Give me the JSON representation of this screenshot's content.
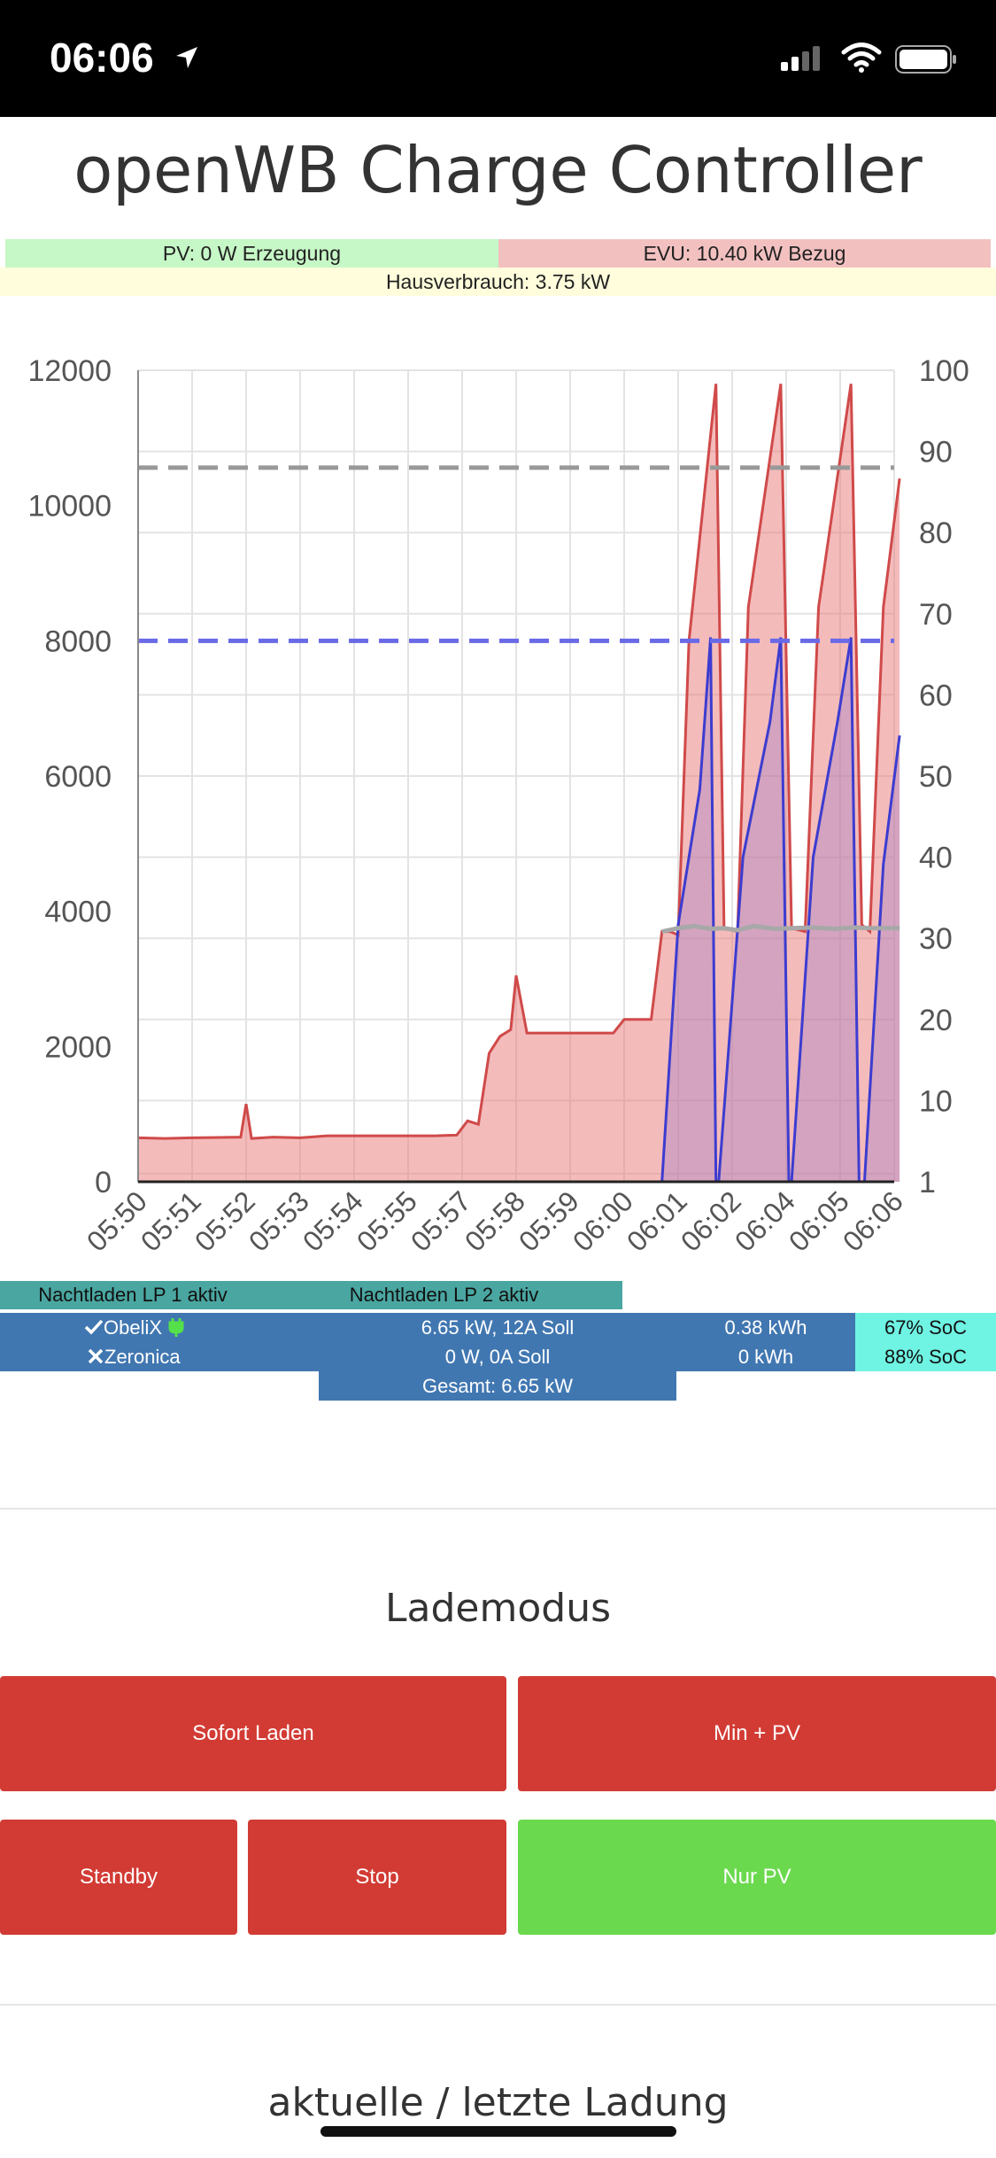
{
  "status_bar": {
    "time": "06:06"
  },
  "app": {
    "title": "openWB Charge Controller"
  },
  "summary": {
    "pv": "PV: 0 W Erzeugung",
    "evu": "EVU: 10.40 kW Bezug",
    "haus": "Hausverbrauch: 3.75 kW"
  },
  "chart_data": {
    "type": "area",
    "x_ticks": [
      "05:50",
      "05:51",
      "05:52",
      "05:53",
      "05:54",
      "05:55",
      "05:57",
      "05:58",
      "05:59",
      "06:00",
      "06:01",
      "06:02",
      "06:04",
      "06:05",
      "06:06"
    ],
    "y_left_ticks": [
      "0",
      "2000",
      "4000",
      "6000",
      "8000",
      "10000",
      "12000"
    ],
    "y_right_ticks": [
      "1",
      "10",
      "20",
      "30",
      "40",
      "50",
      "60",
      "70",
      "80",
      "90",
      "100"
    ],
    "ylim_left": [
      0,
      12000
    ],
    "ylim_right": [
      0,
      100
    ],
    "grid": true,
    "reference_lines": [
      {
        "axis": "right",
        "value": 88,
        "color": "#999999",
        "style": "dashed"
      },
      {
        "axis": "left",
        "value": 8000,
        "color": "#6a6ae8",
        "style": "dashed"
      }
    ],
    "series": [
      {
        "axis": "left",
        "color": "#d04a4a",
        "fill": "rgba(233,120,120,0.5)",
        "points": [
          [
            0,
            650
          ],
          [
            0.5,
            640
          ],
          [
            1,
            650
          ],
          [
            1.9,
            660
          ],
          [
            2.0,
            1150
          ],
          [
            2.1,
            640
          ],
          [
            2.5,
            660
          ],
          [
            3.0,
            650
          ],
          [
            3.5,
            680
          ],
          [
            4.5,
            680
          ],
          [
            5.5,
            680
          ],
          [
            5.9,
            690
          ],
          [
            6.1,
            900
          ],
          [
            6.3,
            850
          ],
          [
            6.5,
            1900
          ],
          [
            6.7,
            2150
          ],
          [
            6.9,
            2250
          ],
          [
            7.0,
            3050
          ],
          [
            7.2,
            2200
          ],
          [
            7.5,
            2200
          ],
          [
            8.2,
            2200
          ],
          [
            8.8,
            2200
          ],
          [
            9.0,
            2400
          ],
          [
            9.5,
            2400
          ],
          [
            9.7,
            3700
          ],
          [
            9.85,
            3700
          ],
          [
            10.0,
            3650
          ],
          [
            10.2,
            8000
          ],
          [
            10.7,
            11800
          ],
          [
            10.85,
            3750
          ],
          [
            11.1,
            3700
          ],
          [
            11.3,
            8500
          ],
          [
            11.9,
            11800
          ],
          [
            12.1,
            3750
          ],
          [
            12.35,
            3700
          ],
          [
            12.6,
            8500
          ],
          [
            13.2,
            11800
          ],
          [
            13.4,
            3800
          ],
          [
            13.55,
            3700
          ],
          [
            13.8,
            8500
          ],
          [
            14.1,
            10400
          ]
        ]
      },
      {
        "axis": "left",
        "color": "#3c3cd0",
        "fill": "rgba(150,120,200,0.35)",
        "points": [
          [
            0,
            0
          ],
          [
            9.55,
            0
          ],
          [
            9.7,
            0
          ],
          [
            10.0,
            3800
          ],
          [
            10.4,
            5800
          ],
          [
            10.6,
            8050
          ],
          [
            10.7,
            0
          ],
          [
            10.75,
            0
          ],
          [
            11.2,
            4800
          ],
          [
            11.7,
            6800
          ],
          [
            11.9,
            8050
          ],
          [
            12.05,
            0
          ],
          [
            12.1,
            0
          ],
          [
            12.5,
            4800
          ],
          [
            12.95,
            6800
          ],
          [
            13.2,
            8050
          ],
          [
            13.35,
            0
          ],
          [
            13.45,
            0
          ],
          [
            13.8,
            4700
          ],
          [
            14.1,
            6600
          ]
        ]
      },
      {
        "axis": "left",
        "color": "#a8a8a8",
        "fill": "none",
        "points": [
          [
            9.7,
            3700
          ],
          [
            10.0,
            3750
          ],
          [
            10.3,
            3780
          ],
          [
            10.6,
            3740
          ],
          [
            10.85,
            3750
          ],
          [
            11.1,
            3720
          ],
          [
            11.4,
            3780
          ],
          [
            11.8,
            3740
          ],
          [
            12.1,
            3750
          ],
          [
            12.5,
            3760
          ],
          [
            12.9,
            3740
          ],
          [
            13.2,
            3760
          ],
          [
            13.6,
            3750
          ],
          [
            14.1,
            3750
          ]
        ]
      }
    ]
  },
  "nachtladen": {
    "lp1": "Nachtladen LP 1 aktiv",
    "lp2": "Nachtladen LP 2 aktiv"
  },
  "ladepunkte": [
    {
      "status_icon": "check-icon",
      "name": "ObeliX",
      "plug_icon": "plug-icon",
      "power": "6.65 kW, 12A Soll",
      "energy": "0.38 kWh",
      "soc": "67% SoC"
    },
    {
      "status_icon": "cross-icon",
      "name": "Zeronica",
      "power": "0 W, 0A Soll",
      "energy": "0 kWh",
      "soc": "88% SoC"
    }
  ],
  "gesamt": "Gesamt: 6.65 kW",
  "lademodus": {
    "title": "Lademodus",
    "buttons": {
      "sofort": "Sofort Laden",
      "minpv": "Min + PV",
      "standby": "Standby",
      "stop": "Stop",
      "nurpv": "Nur PV"
    },
    "active": "Nur PV",
    "colors": {
      "inactive": "#d23b34",
      "active": "#6bd94e"
    }
  },
  "ladung": {
    "title": "aktuelle / letzte Ladung"
  }
}
